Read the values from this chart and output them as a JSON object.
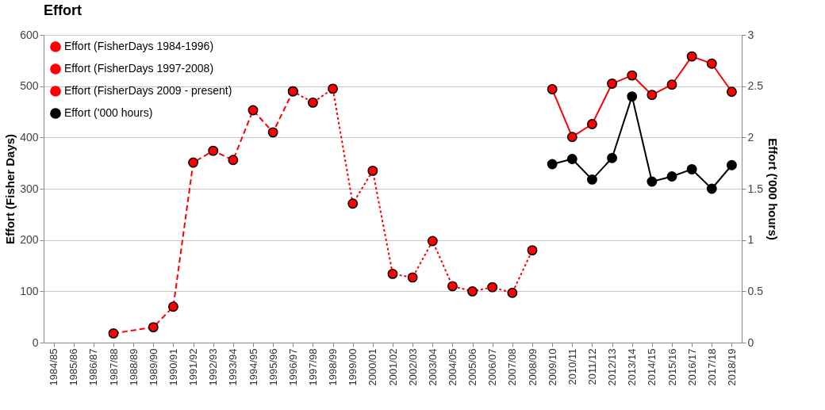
{
  "chart_data": {
    "type": "line",
    "title": "Effort",
    "ylabel": "Effort (Fisher Days)",
    "y2label": "Effort ('000 hours)",
    "categories": [
      "1984/85",
      "1985/86",
      "1986/87",
      "1987/88",
      "1988/89",
      "1989/90",
      "1990/91",
      "1991/92",
      "1992/93",
      "1993/94",
      "1994/95",
      "1995/96",
      "1996/97",
      "1997/98",
      "1998/99",
      "1999/00",
      "2000/01",
      "2001/02",
      "2002/03",
      "2003/04",
      "2004/05",
      "2005/06",
      "2006/07",
      "2007/08",
      "2008/09",
      "2009/10",
      "2010/11",
      "2011/12",
      "2012/13",
      "2013/14",
      "2014/15",
      "2015/16",
      "2016/17",
      "2017/18",
      "2018/19"
    ],
    "ylim": [
      0,
      600
    ],
    "yticks": [
      0,
      100,
      200,
      300,
      400,
      500,
      600
    ],
    "y2lim": [
      0,
      3
    ],
    "y2ticks": [
      0,
      0.5,
      1,
      1.5,
      2,
      2.5,
      3
    ],
    "grid": "y",
    "legend": "top left",
    "marker": "circle",
    "series": [
      {
        "name": "Effort (FisherDays 1984-1996)",
        "color": "#ff0000",
        "line_style": "dashed",
        "values": [
          null,
          null,
          null,
          18,
          null,
          30,
          70,
          351,
          374,
          356,
          453,
          410,
          490,
          null,
          null,
          null,
          null,
          null,
          null,
          null,
          null,
          null,
          null,
          null,
          null,
          null,
          null,
          null,
          null,
          null,
          null,
          null,
          null,
          null,
          null
        ]
      },
      {
        "name": "Effort (FisherDays 1997-2008)",
        "color": "#ff0000",
        "line_style": "dotted",
        "values": [
          null,
          null,
          null,
          null,
          null,
          null,
          null,
          null,
          null,
          null,
          null,
          null,
          490,
          468,
          495,
          271,
          335,
          134,
          127,
          198,
          110,
          100,
          108,
          97,
          180,
          null,
          null,
          null,
          null,
          null,
          null,
          null,
          null,
          null,
          null
        ]
      },
      {
        "name": "Effort (FisherDays 2009 - present)",
        "color": "#ff0000",
        "line_style": "solid",
        "values": [
          null,
          null,
          null,
          null,
          null,
          null,
          null,
          null,
          null,
          null,
          null,
          null,
          null,
          null,
          null,
          null,
          null,
          null,
          null,
          null,
          null,
          null,
          null,
          null,
          null,
          494,
          401,
          426,
          505,
          521,
          483,
          503,
          558,
          544,
          489
        ]
      },
      {
        "name": "Effort ('000 hours)",
        "color": "#000000",
        "line_style": "solid",
        "axis": "y2",
        "values": [
          null,
          null,
          null,
          null,
          null,
          null,
          null,
          null,
          null,
          null,
          null,
          null,
          null,
          null,
          null,
          null,
          null,
          null,
          null,
          null,
          null,
          null,
          null,
          null,
          null,
          1.74,
          1.79,
          1.59,
          1.8,
          2.4,
          1.57,
          1.62,
          1.69,
          1.5,
          1.73
        ]
      }
    ]
  }
}
